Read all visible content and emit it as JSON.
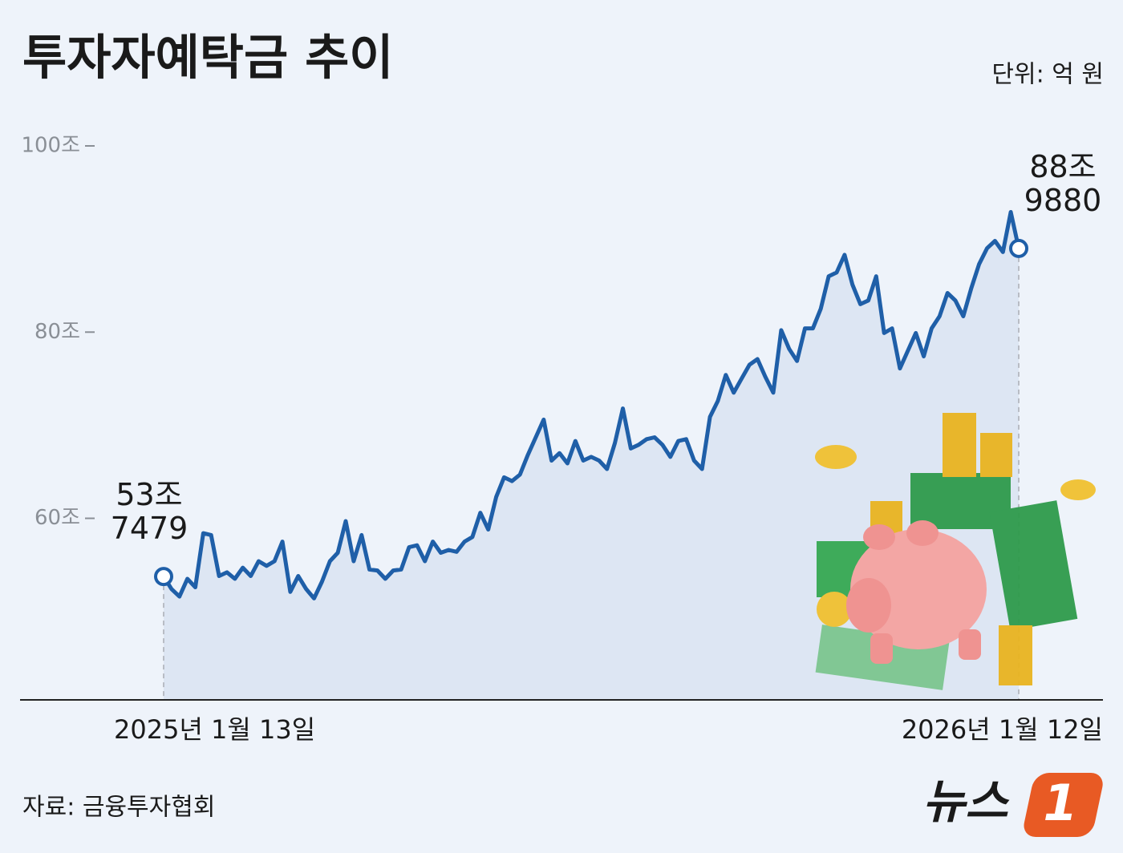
{
  "chart_data": {
    "type": "line",
    "title": "투자자예탁금 추이",
    "unit": "단위: 억 원",
    "source": "자료: 금융투자협회",
    "logo_text": "뉴스",
    "logo_number": "1",
    "categories": [
      "2025년 1월 13일",
      null,
      null,
      null,
      null,
      null,
      null,
      null,
      null,
      null,
      null,
      null,
      null,
      null,
      null,
      null,
      null,
      null,
      null,
      null,
      null,
      null,
      null,
      null,
      null,
      null,
      null,
      null,
      null,
      null,
      null,
      null,
      null,
      null,
      null,
      null,
      null,
      null,
      null,
      null,
      null,
      null,
      null,
      null,
      null,
      null,
      null,
      null,
      null,
      null,
      null,
      null,
      null,
      null,
      null,
      null,
      null,
      null,
      null,
      null,
      null,
      null,
      null,
      null,
      null,
      null,
      null,
      null,
      null,
      null,
      null,
      null,
      null,
      null,
      null,
      null,
      null,
      null,
      null,
      null,
      null,
      null,
      null,
      null,
      null,
      null,
      null,
      null,
      null,
      null,
      null,
      null,
      null,
      null,
      null,
      null,
      null,
      null,
      null,
      null,
      null,
      null,
      null,
      null,
      null,
      null,
      null,
      null,
      "2026년 1월 12일"
    ],
    "series": [
      {
        "name": "투자자예탁금",
        "color": "#1f5fa8",
        "fill": "#dde6f3",
        "values": [
          537479,
          524000,
          516000,
          535000,
          526000,
          584000,
          582000,
          538000,
          542000,
          535000,
          547000,
          538000,
          554000,
          549000,
          554000,
          575000,
          521000,
          538000,
          524000,
          514000,
          532000,
          554000,
          563000,
          597000,
          554000,
          582000,
          545000,
          544000,
          535000,
          544000,
          545000,
          569000,
          571000,
          554000,
          575000,
          563000,
          566000,
          564000,
          575000,
          580000,
          606000,
          588000,
          623000,
          644000,
          640000,
          647000,
          668000,
          687000,
          706000,
          662000,
          670000,
          659000,
          683000,
          662000,
          666000,
          662000,
          653000,
          681000,
          718000,
          675000,
          679000,
          685000,
          687000,
          679000,
          666000,
          683000,
          685000,
          662000,
          653000,
          709000,
          726000,
          754000,
          735000,
          750000,
          765000,
          771000,
          752000,
          735000,
          802000,
          782000,
          769000,
          804000,
          804000,
          825000,
          860000,
          864000,
          883000,
          851000,
          830000,
          834000,
          860000,
          799000,
          804000,
          761000,
          780000,
          799000,
          774000,
          804000,
          817000,
          842000,
          834000,
          817000,
          847000,
          873000,
          890000,
          898000,
          886000,
          929000,
          889880
        ],
        "value_labels": [
          "53조 7479",
          null,
          null,
          null,
          null,
          null,
          null,
          null,
          null,
          null,
          null,
          null,
          null,
          null,
          null,
          null,
          null,
          null,
          null,
          null,
          null,
          null,
          null,
          null,
          null,
          null,
          null,
          null,
          null,
          null,
          null,
          null,
          null,
          null,
          null,
          null,
          null,
          null,
          null,
          null,
          null,
          null,
          null,
          null,
          null,
          null,
          null,
          null,
          null,
          null,
          null,
          null,
          null,
          null,
          null,
          null,
          null,
          null,
          null,
          null,
          null,
          null,
          null,
          null,
          null,
          null,
          null,
          null,
          null,
          null,
          null,
          null,
          null,
          null,
          null,
          null,
          null,
          null,
          null,
          null,
          null,
          null,
          null,
          null,
          null,
          null,
          null,
          null,
          null,
          null,
          null,
          null,
          null,
          null,
          null,
          null,
          null,
          null,
          null,
          null,
          null,
          null,
          null,
          null,
          null,
          null,
          null,
          null,
          "88조 9880"
        ]
      }
    ],
    "ylim": [
      405000,
      1000000
    ],
    "yticks": [
      {
        "value": 600000,
        "label": "60조"
      },
      {
        "value": 800000,
        "label": "80조"
      },
      {
        "value": 1000000,
        "label": "100조"
      }
    ]
  }
}
